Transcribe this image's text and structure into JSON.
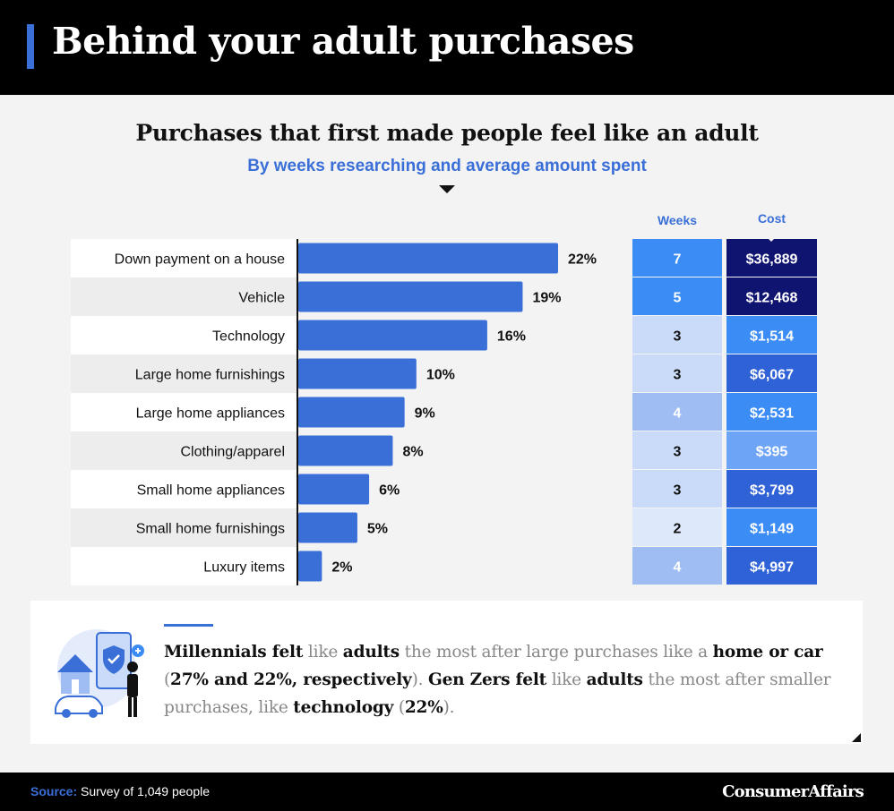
{
  "header": {
    "title": "Behind your adult purchases"
  },
  "columns": {
    "weeks": "Weeks",
    "cost": "Cost"
  },
  "callout": {
    "segments": [
      {
        "text": "Millennials felt",
        "bold": true
      },
      {
        "text": " like ",
        "bold": false
      },
      {
        "text": "adults",
        "bold": true
      },
      {
        "text": " the most after large purchases like a ",
        "bold": false
      },
      {
        "text": "home or car",
        "bold": true
      },
      {
        "text": " (",
        "bold": false
      },
      {
        "text": "27% and 22%, respectively",
        "bold": true
      },
      {
        "text": "). ",
        "bold": false
      },
      {
        "text": "Gen Zers felt",
        "bold": true
      },
      {
        "text": " like ",
        "bold": false
      },
      {
        "text": "adults",
        "bold": true
      },
      {
        "text": " the most after smaller purchases, like ",
        "bold": false
      },
      {
        "text": "technology",
        "bold": true
      },
      {
        "text": " (",
        "bold": false
      },
      {
        "text": "22%",
        "bold": true
      },
      {
        "text": ").",
        "bold": false
      }
    ]
  },
  "footer": {
    "source_label": "Source:",
    "source_text": "Survey of 1,049 people",
    "brand": "ConsumerAffairs"
  },
  "colors": {
    "accent": "#3a6fd8",
    "bar": "#3a6fd8",
    "dark_navy": "#0f1470",
    "navy": "#1e2ea8",
    "mid_blue": "#2f62d6",
    "bright_blue": "#3b8cf5",
    "light_blue": "#9fbdf2",
    "pale_blue": "#c9dbf8"
  },
  "chart_data": {
    "type": "bar",
    "orientation": "horizontal",
    "title": "Purchases that first made people feel like an adult",
    "subtitle": "By weeks researching and average amount spent",
    "categories": [
      "Down payment on a house",
      "Vehicle",
      "Technology",
      "Large home furnishings",
      "Large home appliances",
      "Clothing/apparel",
      "Small home appliances",
      "Small home furnishings",
      "Luxury items"
    ],
    "values": [
      22,
      19,
      16,
      10,
      9,
      8,
      6,
      5,
      2
    ],
    "value_labels": [
      "22%",
      "19%",
      "16%",
      "10%",
      "9%",
      "8%",
      "6%",
      "5%",
      "2%"
    ],
    "xlim": [
      0,
      22
    ],
    "weeks": [
      7,
      5,
      3,
      3,
      4,
      3,
      3,
      2,
      4
    ],
    "cost": [
      36889,
      12468,
      1514,
      6067,
      2531,
      395,
      3799,
      1149,
      4997
    ],
    "cost_labels": [
      "$36,889",
      "$12,468",
      "$1,514",
      "$6,067",
      "$2,531",
      "$395",
      "$3,799",
      "$1,149",
      "$4,997"
    ],
    "weeks_colors": [
      "#3b8cf5",
      "#3b8cf5",
      "#c9dbf8",
      "#c9dbf8",
      "#9fbdf2",
      "#c9dbf8",
      "#c9dbf8",
      "#dde8fb",
      "#9fbdf2"
    ],
    "cost_colors": [
      "#0f1470",
      "#0f1470",
      "#3b8cf5",
      "#2f62d6",
      "#3b8cf5",
      "#6ea4f5",
      "#2f62d6",
      "#3b8cf5",
      "#2f62d6"
    ]
  }
}
